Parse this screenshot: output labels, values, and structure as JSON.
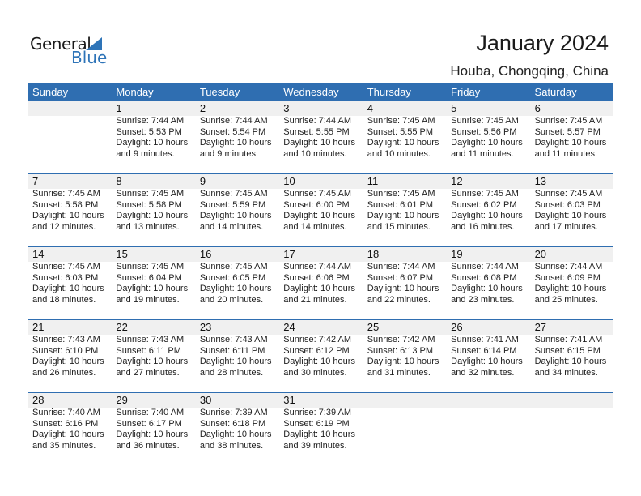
{
  "logo": {
    "general": "General",
    "blue": "Blue"
  },
  "title": "January 2024",
  "location": "Houba, Chongqing, China",
  "colors": {
    "header": "#2f6eb1",
    "band": "#f0f0f0"
  },
  "days_of_week": [
    "Sunday",
    "Monday",
    "Tuesday",
    "Wednesday",
    "Thursday",
    "Friday",
    "Saturday"
  ],
  "weeks": [
    [
      null,
      {
        "day": "1",
        "sunrise": "Sunrise: 7:44 AM",
        "sunset": "Sunset: 5:53 PM",
        "daylight1": "Daylight: 10 hours",
        "daylight2": "and 9 minutes."
      },
      {
        "day": "2",
        "sunrise": "Sunrise: 7:44 AM",
        "sunset": "Sunset: 5:54 PM",
        "daylight1": "Daylight: 10 hours",
        "daylight2": "and 9 minutes."
      },
      {
        "day": "3",
        "sunrise": "Sunrise: 7:44 AM",
        "sunset": "Sunset: 5:55 PM",
        "daylight1": "Daylight: 10 hours",
        "daylight2": "and 10 minutes."
      },
      {
        "day": "4",
        "sunrise": "Sunrise: 7:45 AM",
        "sunset": "Sunset: 5:55 PM",
        "daylight1": "Daylight: 10 hours",
        "daylight2": "and 10 minutes."
      },
      {
        "day": "5",
        "sunrise": "Sunrise: 7:45 AM",
        "sunset": "Sunset: 5:56 PM",
        "daylight1": "Daylight: 10 hours",
        "daylight2": "and 11 minutes."
      },
      {
        "day": "6",
        "sunrise": "Sunrise: 7:45 AM",
        "sunset": "Sunset: 5:57 PM",
        "daylight1": "Daylight: 10 hours",
        "daylight2": "and 11 minutes."
      }
    ],
    [
      {
        "day": "7",
        "sunrise": "Sunrise: 7:45 AM",
        "sunset": "Sunset: 5:58 PM",
        "daylight1": "Daylight: 10 hours",
        "daylight2": "and 12 minutes."
      },
      {
        "day": "8",
        "sunrise": "Sunrise: 7:45 AM",
        "sunset": "Sunset: 5:58 PM",
        "daylight1": "Daylight: 10 hours",
        "daylight2": "and 13 minutes."
      },
      {
        "day": "9",
        "sunrise": "Sunrise: 7:45 AM",
        "sunset": "Sunset: 5:59 PM",
        "daylight1": "Daylight: 10 hours",
        "daylight2": "and 14 minutes."
      },
      {
        "day": "10",
        "sunrise": "Sunrise: 7:45 AM",
        "sunset": "Sunset: 6:00 PM",
        "daylight1": "Daylight: 10 hours",
        "daylight2": "and 14 minutes."
      },
      {
        "day": "11",
        "sunrise": "Sunrise: 7:45 AM",
        "sunset": "Sunset: 6:01 PM",
        "daylight1": "Daylight: 10 hours",
        "daylight2": "and 15 minutes."
      },
      {
        "day": "12",
        "sunrise": "Sunrise: 7:45 AM",
        "sunset": "Sunset: 6:02 PM",
        "daylight1": "Daylight: 10 hours",
        "daylight2": "and 16 minutes."
      },
      {
        "day": "13",
        "sunrise": "Sunrise: 7:45 AM",
        "sunset": "Sunset: 6:03 PM",
        "daylight1": "Daylight: 10 hours",
        "daylight2": "and 17 minutes."
      }
    ],
    [
      {
        "day": "14",
        "sunrise": "Sunrise: 7:45 AM",
        "sunset": "Sunset: 6:03 PM",
        "daylight1": "Daylight: 10 hours",
        "daylight2": "and 18 minutes."
      },
      {
        "day": "15",
        "sunrise": "Sunrise: 7:45 AM",
        "sunset": "Sunset: 6:04 PM",
        "daylight1": "Daylight: 10 hours",
        "daylight2": "and 19 minutes."
      },
      {
        "day": "16",
        "sunrise": "Sunrise: 7:45 AM",
        "sunset": "Sunset: 6:05 PM",
        "daylight1": "Daylight: 10 hours",
        "daylight2": "and 20 minutes."
      },
      {
        "day": "17",
        "sunrise": "Sunrise: 7:44 AM",
        "sunset": "Sunset: 6:06 PM",
        "daylight1": "Daylight: 10 hours",
        "daylight2": "and 21 minutes."
      },
      {
        "day": "18",
        "sunrise": "Sunrise: 7:44 AM",
        "sunset": "Sunset: 6:07 PM",
        "daylight1": "Daylight: 10 hours",
        "daylight2": "and 22 minutes."
      },
      {
        "day": "19",
        "sunrise": "Sunrise: 7:44 AM",
        "sunset": "Sunset: 6:08 PM",
        "daylight1": "Daylight: 10 hours",
        "daylight2": "and 23 minutes."
      },
      {
        "day": "20",
        "sunrise": "Sunrise: 7:44 AM",
        "sunset": "Sunset: 6:09 PM",
        "daylight1": "Daylight: 10 hours",
        "daylight2": "and 25 minutes."
      }
    ],
    [
      {
        "day": "21",
        "sunrise": "Sunrise: 7:43 AM",
        "sunset": "Sunset: 6:10 PM",
        "daylight1": "Daylight: 10 hours",
        "daylight2": "and 26 minutes."
      },
      {
        "day": "22",
        "sunrise": "Sunrise: 7:43 AM",
        "sunset": "Sunset: 6:11 PM",
        "daylight1": "Daylight: 10 hours",
        "daylight2": "and 27 minutes."
      },
      {
        "day": "23",
        "sunrise": "Sunrise: 7:43 AM",
        "sunset": "Sunset: 6:11 PM",
        "daylight1": "Daylight: 10 hours",
        "daylight2": "and 28 minutes."
      },
      {
        "day": "24",
        "sunrise": "Sunrise: 7:42 AM",
        "sunset": "Sunset: 6:12 PM",
        "daylight1": "Daylight: 10 hours",
        "daylight2": "and 30 minutes."
      },
      {
        "day": "25",
        "sunrise": "Sunrise: 7:42 AM",
        "sunset": "Sunset: 6:13 PM",
        "daylight1": "Daylight: 10 hours",
        "daylight2": "and 31 minutes."
      },
      {
        "day": "26",
        "sunrise": "Sunrise: 7:41 AM",
        "sunset": "Sunset: 6:14 PM",
        "daylight1": "Daylight: 10 hours",
        "daylight2": "and 32 minutes."
      },
      {
        "day": "27",
        "sunrise": "Sunrise: 7:41 AM",
        "sunset": "Sunset: 6:15 PM",
        "daylight1": "Daylight: 10 hours",
        "daylight2": "and 34 minutes."
      }
    ],
    [
      {
        "day": "28",
        "sunrise": "Sunrise: 7:40 AM",
        "sunset": "Sunset: 6:16 PM",
        "daylight1": "Daylight: 10 hours",
        "daylight2": "and 35 minutes."
      },
      {
        "day": "29",
        "sunrise": "Sunrise: 7:40 AM",
        "sunset": "Sunset: 6:17 PM",
        "daylight1": "Daylight: 10 hours",
        "daylight2": "and 36 minutes."
      },
      {
        "day": "30",
        "sunrise": "Sunrise: 7:39 AM",
        "sunset": "Sunset: 6:18 PM",
        "daylight1": "Daylight: 10 hours",
        "daylight2": "and 38 minutes."
      },
      {
        "day": "31",
        "sunrise": "Sunrise: 7:39 AM",
        "sunset": "Sunset: 6:19 PM",
        "daylight1": "Daylight: 10 hours",
        "daylight2": "and 39 minutes."
      },
      null,
      null,
      null
    ]
  ]
}
